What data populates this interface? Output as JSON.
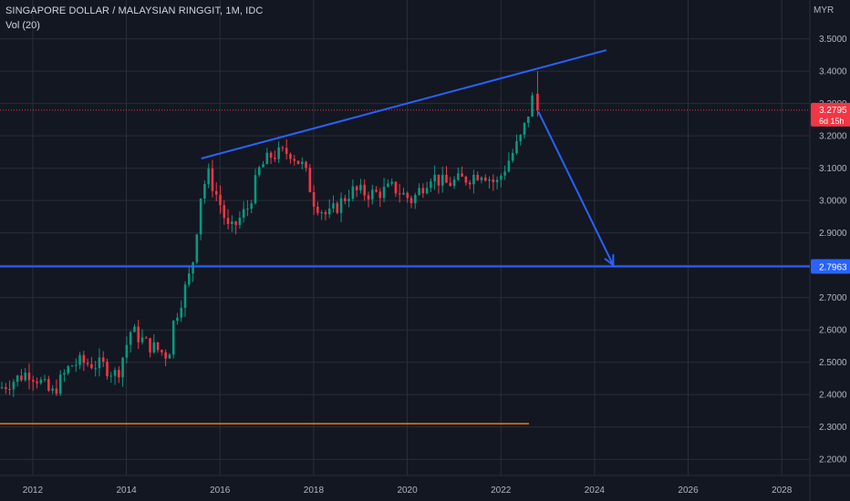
{
  "header": {
    "title": "SINGAPORE DOLLAR / MALAYSIAN RINGGIT, 1M, IDC",
    "indicator": "Vol (20)",
    "currency": "MYR"
  },
  "price_tag": {
    "value": "3.2795",
    "countdown": "6d 15h",
    "color": "#f23645"
  },
  "level_tag": {
    "value": "2.7963",
    "color": "#2962ff"
  },
  "colors": {
    "up": "#089981",
    "down": "#f23645",
    "trend": "#2962ff",
    "support": "#f57c00",
    "background": "#131722",
    "grid": "#2a2e39",
    "axis_text": "#b2b5be"
  },
  "chart_data": {
    "type": "candlestick",
    "x_ticks": [
      "2012",
      "2014",
      "2016",
      "2018",
      "2020",
      "2022",
      "2024",
      "2026",
      "2028"
    ],
    "y_ticks": [
      "3.5000",
      "3.4000",
      "3.3000",
      "3.2000",
      "3.1000",
      "3.0000",
      "2.9000",
      "2.8000",
      "2.7000",
      "2.6000",
      "2.5000",
      "2.4000",
      "2.3000",
      "2.2000"
    ],
    "ylim": [
      2.15,
      3.62
    ],
    "xlim": [
      2011.3,
      2028.6
    ],
    "grid": true,
    "last_price": 3.2795,
    "support_level": 2.7963,
    "lower_level": 2.31,
    "annotations": [
      {
        "type": "trendline",
        "from": [
          2015.6,
          3.13
        ],
        "to": [
          2024.25,
          3.465
        ]
      },
      {
        "type": "horizontal_line",
        "price": 2.7963
      },
      {
        "type": "horizontal_ray",
        "from": 2011.3,
        "to": 2022.6,
        "price": 2.31
      },
      {
        "type": "arrow",
        "from": [
          2022.8,
          3.275
        ],
        "to": [
          2024.4,
          2.8
        ]
      }
    ],
    "anchors": [
      [
        2011.3,
        2.42
      ],
      [
        2011.9,
        2.47
      ],
      [
        2012.1,
        2.45
      ],
      [
        2012.4,
        2.4
      ],
      [
        2012.8,
        2.49
      ],
      [
        2013.0,
        2.5
      ],
      [
        2013.5,
        2.49
      ],
      [
        2013.8,
        2.46
      ],
      [
        2014.1,
        2.6
      ],
      [
        2014.4,
        2.56
      ],
      [
        2014.9,
        2.52
      ],
      [
        2015.0,
        2.62
      ],
      [
        2015.4,
        2.79
      ],
      [
        2015.6,
        3.03
      ],
      [
        2015.75,
        3.08
      ],
      [
        2016.0,
        2.99
      ],
      [
        2016.2,
        2.9
      ],
      [
        2016.6,
        2.98
      ],
      [
        2016.85,
        3.1
      ],
      [
        2017.1,
        3.14
      ],
      [
        2017.5,
        3.15
      ],
      [
        2017.8,
        3.1
      ],
      [
        2018.0,
        3.0
      ],
      [
        2018.3,
        2.95
      ],
      [
        2018.8,
        3.03
      ],
      [
        2019.3,
        3.02
      ],
      [
        2019.7,
        3.04
      ],
      [
        2020.1,
        3.0
      ],
      [
        2020.5,
        3.08
      ],
      [
        2020.8,
        3.05
      ],
      [
        2021.3,
        3.07
      ],
      [
        2021.6,
        3.09
      ],
      [
        2021.9,
        3.05
      ],
      [
        2022.15,
        3.12
      ],
      [
        2022.45,
        3.2
      ],
      [
        2022.7,
        3.33
      ]
    ],
    "candle_step_years": 0.0833,
    "last_candle": {
      "open": 3.33,
      "high": 3.4,
      "low": 3.26,
      "close": 3.2795
    }
  }
}
